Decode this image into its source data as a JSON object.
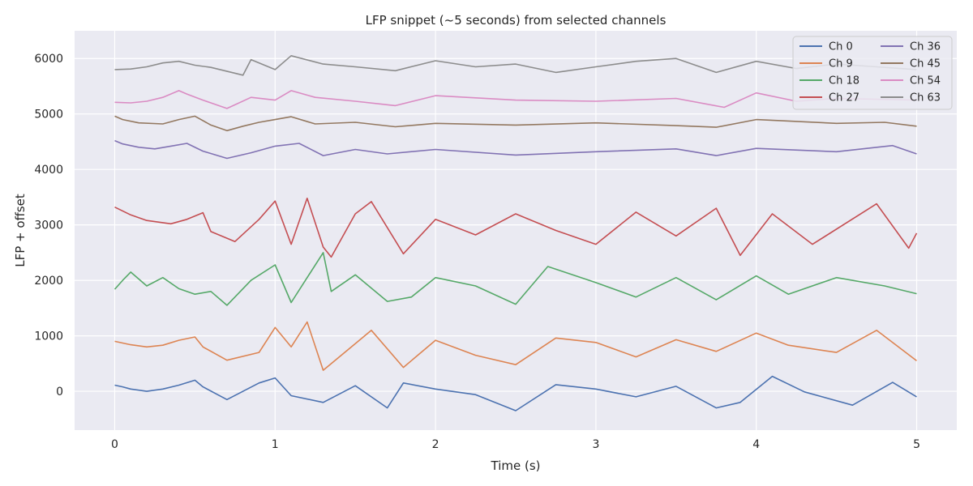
{
  "chart_data": {
    "type": "line",
    "title": "LFP snippet (~5 seconds) from selected channels",
    "xlabel": "Time (s)",
    "ylabel": "LFP + offset",
    "xlim": [
      -0.25,
      5.25
    ],
    "ylim": [
      -700,
      6500
    ],
    "xticks": [
      0,
      1,
      2,
      3,
      4,
      5
    ],
    "xtick_labels": [
      "0",
      "1",
      "2",
      "3",
      "4",
      "5"
    ],
    "yticks": [
      0,
      1000,
      2000,
      3000,
      4000,
      5000,
      6000
    ],
    "ytick_labels": [
      "0",
      "1000",
      "2000",
      "3000",
      "4000",
      "5000",
      "6000"
    ],
    "grid": true,
    "legend_position": "top-right",
    "legend_columns": 2,
    "background": "#eaeaf2",
    "series": [
      {
        "name": "Ch 0",
        "color": "#4c72b0",
        "x": [
          0,
          0.05,
          0.1,
          0.2,
          0.3,
          0.4,
          0.5,
          0.55,
          0.7,
          0.9,
          1.0,
          1.1,
          1.3,
          1.5,
          1.7,
          1.8,
          2.0,
          2.25,
          2.5,
          2.75,
          3.0,
          3.25,
          3.5,
          3.75,
          3.9,
          4.1,
          4.3,
          4.6,
          4.85,
          5.0
        ],
        "y": [
          110,
          80,
          40,
          0,
          40,
          110,
          200,
          80,
          -150,
          150,
          240,
          -80,
          -200,
          100,
          -300,
          150,
          40,
          -60,
          -350,
          120,
          40,
          -100,
          90,
          -300,
          -200,
          270,
          -10,
          -250,
          160,
          -100
        ]
      },
      {
        "name": "Ch 9",
        "color": "#dd8452",
        "x": [
          0,
          0.05,
          0.1,
          0.2,
          0.3,
          0.4,
          0.5,
          0.55,
          0.7,
          0.9,
          1.0,
          1.1,
          1.2,
          1.3,
          1.5,
          1.6,
          1.8,
          2.0,
          2.25,
          2.5,
          2.75,
          3.0,
          3.25,
          3.5,
          3.75,
          4.0,
          4.2,
          4.5,
          4.75,
          5.0
        ],
        "y": [
          900,
          870,
          840,
          800,
          830,
          920,
          980,
          800,
          560,
          700,
          1150,
          800,
          1250,
          380,
          860,
          1100,
          430,
          920,
          650,
          480,
          960,
          880,
          620,
          930,
          720,
          1050,
          830,
          700,
          1100,
          550
        ]
      },
      {
        "name": "Ch 18",
        "color": "#55a868",
        "x": [
          0,
          0.05,
          0.1,
          0.2,
          0.3,
          0.4,
          0.5,
          0.6,
          0.7,
          0.85,
          1.0,
          1.1,
          1.3,
          1.35,
          1.5,
          1.7,
          1.85,
          2.0,
          2.25,
          2.5,
          2.7,
          3.0,
          3.25,
          3.5,
          3.75,
          4.0,
          4.2,
          4.5,
          4.8,
          5.0
        ],
        "y": [
          1840,
          2000,
          2150,
          1900,
          2050,
          1850,
          1750,
          1800,
          1550,
          2000,
          2280,
          1600,
          2500,
          1800,
          2100,
          1620,
          1700,
          2050,
          1900,
          1570,
          2250,
          1960,
          1700,
          2050,
          1650,
          2080,
          1750,
          2050,
          1900,
          1760
        ]
      },
      {
        "name": "Ch 27",
        "color": "#c44e52",
        "x": [
          0,
          0.1,
          0.2,
          0.35,
          0.45,
          0.55,
          0.6,
          0.75,
          0.9,
          1.0,
          1.1,
          1.2,
          1.3,
          1.35,
          1.5,
          1.6,
          1.8,
          2.0,
          2.25,
          2.5,
          2.75,
          3.0,
          3.25,
          3.5,
          3.75,
          3.9,
          4.1,
          4.35,
          4.75,
          4.95,
          5.0
        ],
        "y": [
          3320,
          3180,
          3080,
          3020,
          3100,
          3220,
          2880,
          2700,
          3100,
          3430,
          2650,
          3480,
          2600,
          2420,
          3200,
          3420,
          2480,
          3100,
          2820,
          3200,
          2900,
          2650,
          3230,
          2800,
          3300,
          2450,
          3200,
          2650,
          3380,
          2580,
          2850
        ]
      },
      {
        "name": "Ch 36",
        "color": "#8172b3",
        "x": [
          0,
          0.05,
          0.15,
          0.25,
          0.35,
          0.45,
          0.55,
          0.7,
          0.85,
          1.0,
          1.15,
          1.3,
          1.5,
          1.7,
          2.0,
          2.5,
          3.0,
          3.5,
          3.75,
          4.0,
          4.5,
          4.85,
          5.0
        ],
        "y": [
          4520,
          4460,
          4400,
          4370,
          4420,
          4470,
          4330,
          4200,
          4300,
          4420,
          4470,
          4250,
          4360,
          4280,
          4360,
          4260,
          4320,
          4370,
          4250,
          4380,
          4320,
          4430,
          4280
        ]
      },
      {
        "name": "Ch 45",
        "color": "#937860",
        "x": [
          0,
          0.05,
          0.15,
          0.3,
          0.4,
          0.5,
          0.6,
          0.7,
          0.8,
          0.9,
          1.0,
          1.1,
          1.25,
          1.5,
          1.75,
          2.0,
          2.5,
          3.0,
          3.5,
          3.75,
          4.0,
          4.5,
          4.8,
          5.0
        ],
        "y": [
          4960,
          4900,
          4840,
          4820,
          4900,
          4960,
          4800,
          4700,
          4780,
          4850,
          4900,
          4950,
          4820,
          4850,
          4770,
          4830,
          4800,
          4840,
          4790,
          4760,
          4900,
          4830,
          4850,
          4780
        ]
      },
      {
        "name": "Ch 54",
        "color": "#da8bc3",
        "x": [
          0,
          0.1,
          0.2,
          0.3,
          0.4,
          0.45,
          0.55,
          0.7,
          0.85,
          1.0,
          1.1,
          1.25,
          1.5,
          1.75,
          2.0,
          2.5,
          3.0,
          3.5,
          3.8,
          4.0,
          4.25,
          4.5,
          5.0
        ],
        "y": [
          5210,
          5200,
          5230,
          5300,
          5420,
          5360,
          5250,
          5100,
          5300,
          5250,
          5420,
          5300,
          5230,
          5150,
          5330,
          5250,
          5230,
          5280,
          5120,
          5380,
          5230,
          5280,
          5250
        ]
      },
      {
        "name": "Ch 63",
        "color": "#8c8c8c",
        "x": [
          0,
          0.1,
          0.2,
          0.3,
          0.4,
          0.5,
          0.6,
          0.8,
          0.85,
          1.0,
          1.1,
          1.3,
          1.5,
          1.75,
          2.0,
          2.25,
          2.5,
          2.75,
          3.0,
          3.25,
          3.5,
          3.75,
          4.0,
          4.25,
          4.5,
          4.75,
          5.0
        ],
        "y": [
          5800,
          5810,
          5850,
          5920,
          5950,
          5880,
          5840,
          5700,
          5980,
          5800,
          6050,
          5900,
          5850,
          5780,
          5960,
          5850,
          5900,
          5750,
          5850,
          5950,
          6000,
          5750,
          5950,
          5820,
          5900,
          5850,
          5800
        ]
      }
    ]
  }
}
